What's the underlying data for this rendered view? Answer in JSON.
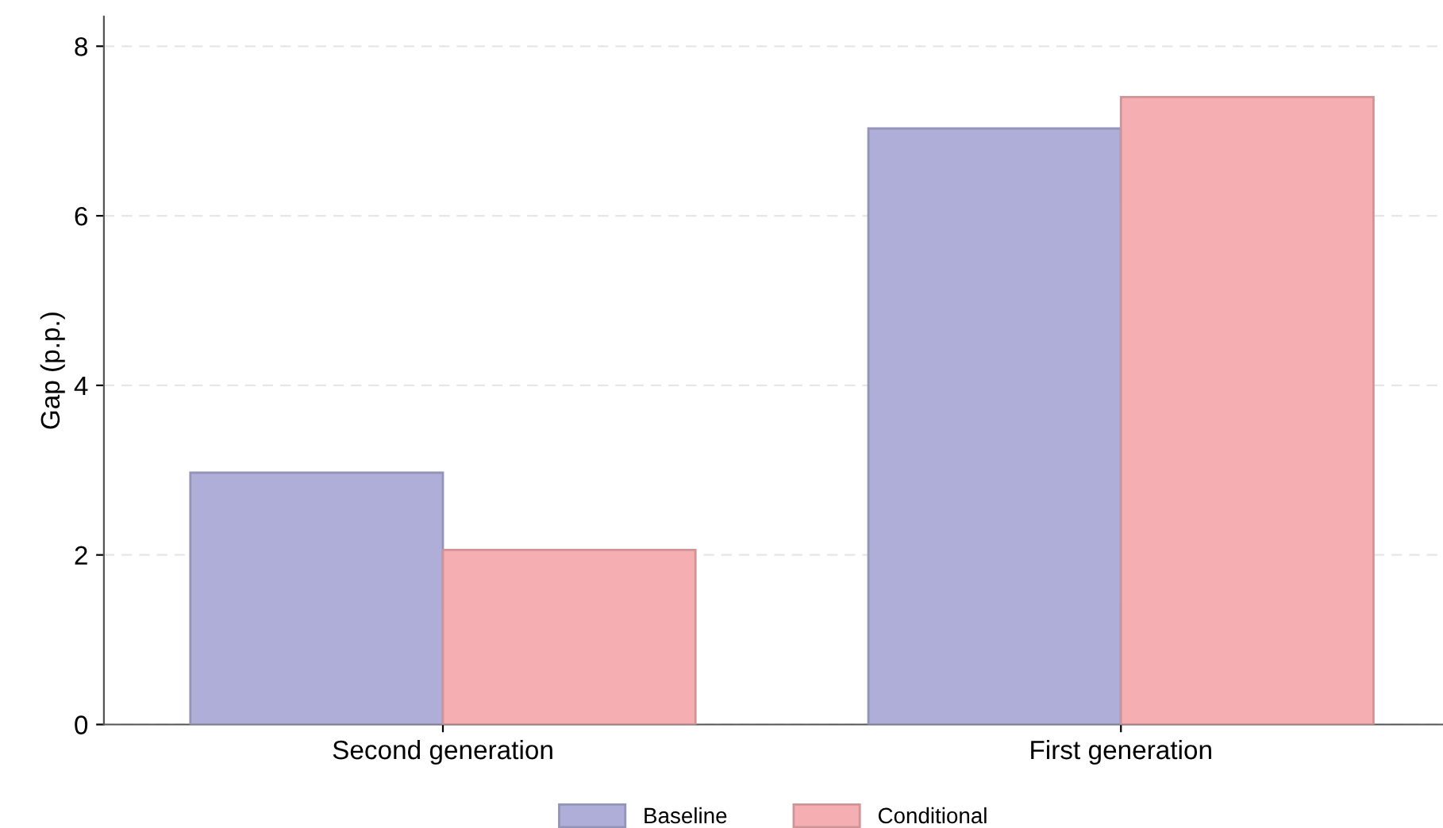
{
  "chart_data": {
    "type": "bar",
    "ylabel": "Gap (p.p.)",
    "categories": [
      "Second generation",
      "First generation"
    ],
    "series": [
      {
        "name": "Baseline",
        "color": "#aeaed8",
        "values": [
          2.97,
          7.03
        ]
      },
      {
        "name": "Conditional",
        "color": "#f5aeb2",
        "values": [
          2.06,
          7.4
        ]
      }
    ],
    "ylim": [
      0,
      8.35
    ],
    "yticks": [
      0,
      2,
      4,
      6,
      8
    ],
    "grid": "y",
    "legend": "bottom"
  }
}
